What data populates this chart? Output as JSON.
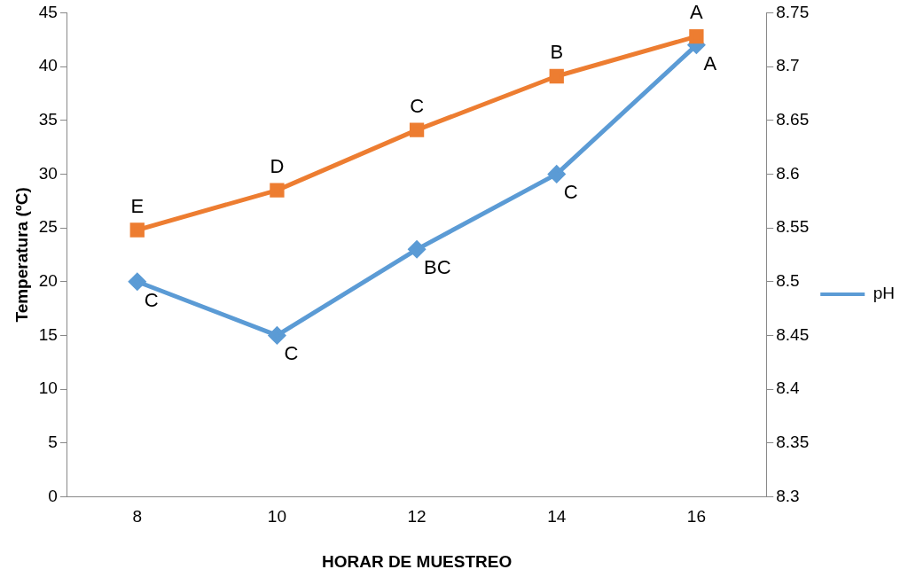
{
  "chart_data": {
    "type": "line",
    "xlabel": "HORAR DE MUESTREO",
    "ylabel": "Temperatura (ºC)",
    "x": [
      8,
      10,
      12,
      14,
      16
    ],
    "xlim": [
      7,
      17
    ],
    "xticks": [
      8,
      10,
      12,
      14,
      16
    ],
    "ylim": [
      0,
      45
    ],
    "yticks": [
      0,
      5,
      10,
      15,
      20,
      25,
      30,
      35,
      40,
      45
    ],
    "y2lim": [
      8.3,
      8.75
    ],
    "y2ticks": [
      8.3,
      8.35,
      8.4,
      8.45,
      8.5,
      8.55,
      8.6,
      8.65,
      8.7,
      8.75
    ],
    "series": [
      {
        "color": "#ed7d31",
        "marker": "square",
        "values": [
          24.8,
          28.5,
          34.1,
          39.1,
          42.8
        ],
        "value_labels": [
          "E",
          "D",
          "C",
          "B",
          "A"
        ]
      },
      {
        "name": "pH",
        "color": "#5b9bd5",
        "marker": "diamond",
        "axis": "y2",
        "values": [
          8.5,
          8.45,
          8.53,
          8.6,
          8.72
        ],
        "value_labels": [
          "C",
          "C",
          "BC",
          "C",
          "A"
        ]
      }
    ],
    "grid": false,
    "legend": "right",
    "line_style": "solid"
  }
}
